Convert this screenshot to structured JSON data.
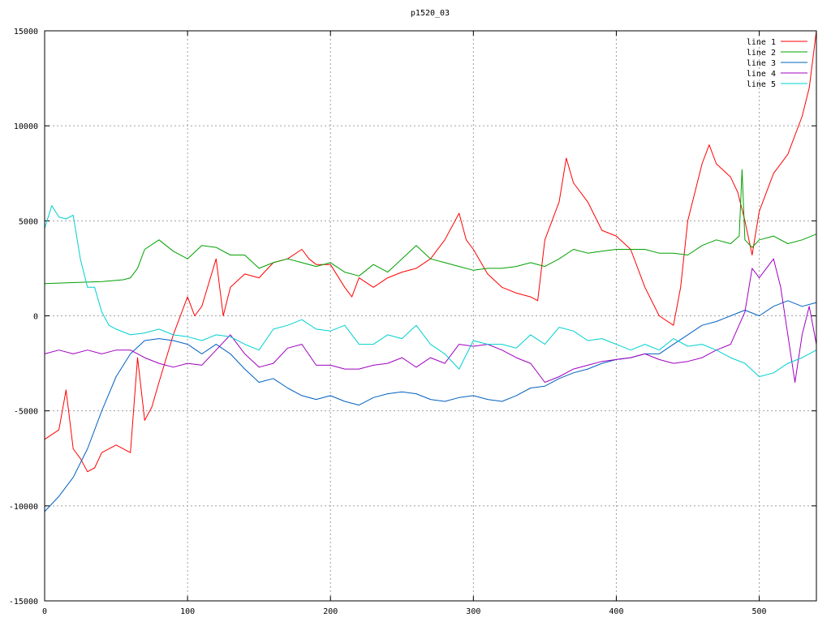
{
  "chart_data": {
    "type": "line",
    "title": "p1520_03",
    "xlabel": "",
    "ylabel": "",
    "xlim": [
      0,
      540
    ],
    "ylim": [
      -15000,
      15000
    ],
    "x_ticks": [
      0,
      100,
      200,
      300,
      400,
      500
    ],
    "y_ticks": [
      -15000,
      -10000,
      -5000,
      0,
      5000,
      10000,
      15000
    ],
    "x_tick_labels": [
      "0",
      "100",
      "200",
      "300",
      "400",
      "500"
    ],
    "y_tick_labels": [
      "-15000",
      "-10000",
      "-5000",
      "0",
      "5000",
      "10000",
      "15000"
    ],
    "grid": true,
    "legend_position": "top-right",
    "series": [
      {
        "name": "line 1",
        "color": "#ff0000",
        "x": [
          0,
          10,
          15,
          20,
          25,
          30,
          35,
          40,
          50,
          60,
          65,
          70,
          75,
          80,
          90,
          100,
          105,
          110,
          120,
          125,
          130,
          140,
          150,
          160,
          170,
          180,
          185,
          190,
          200,
          210,
          215,
          220,
          230,
          240,
          250,
          260,
          270,
          280,
          290,
          295,
          300,
          310,
          320,
          330,
          340,
          345,
          350,
          360,
          365,
          370,
          380,
          390,
          400,
          410,
          420,
          430,
          440,
          445,
          450,
          460,
          465,
          470,
          480,
          485,
          490,
          495,
          500,
          510,
          520,
          530,
          535,
          540
        ],
        "y": [
          -6500,
          -6000,
          -3900,
          -7000,
          -7500,
          -8200,
          -8000,
          -7200,
          -6800,
          -7200,
          -2200,
          -5500,
          -4800,
          -3500,
          -1000,
          1000,
          0,
          500,
          3000,
          0,
          1500,
          2200,
          2000,
          2800,
          3000,
          3500,
          3000,
          2700,
          2700,
          1500,
          1000,
          2000,
          1500,
          2000,
          2300,
          2500,
          3000,
          4000,
          5400,
          4000,
          3500,
          2200,
          1500,
          1200,
          1000,
          800,
          4000,
          6000,
          8300,
          7000,
          6000,
          4500,
          4200,
          3500,
          1500,
          0,
          -500,
          1500,
          5000,
          8000,
          9000,
          8000,
          7300,
          6500,
          5000,
          3200,
          5500,
          7500,
          8500,
          10500,
          12000,
          15000
        ]
      },
      {
        "name": "line 2",
        "color": "#00a000",
        "x": [
          0,
          20,
          40,
          55,
          60,
          65,
          70,
          80,
          90,
          100,
          110,
          120,
          130,
          140,
          150,
          160,
          170,
          180,
          190,
          200,
          210,
          220,
          230,
          240,
          250,
          260,
          270,
          280,
          290,
          300,
          310,
          320,
          330,
          340,
          350,
          360,
          370,
          380,
          390,
          400,
          410,
          420,
          430,
          440,
          450,
          460,
          470,
          480,
          486,
          488,
          490,
          495,
          500,
          510,
          520,
          530,
          540
        ],
        "y": [
          1700,
          1750,
          1800,
          1900,
          2000,
          2500,
          3500,
          4000,
          3400,
          3000,
          3700,
          3600,
          3200,
          3200,
          2500,
          2800,
          3000,
          2800,
          2600,
          2800,
          2300,
          2100,
          2700,
          2300,
          3000,
          3700,
          3000,
          2800,
          2600,
          2400,
          2500,
          2500,
          2600,
          2800,
          2600,
          3000,
          3500,
          3300,
          3400,
          3500,
          3500,
          3500,
          3300,
          3300,
          3200,
          3700,
          4000,
          3800,
          4200,
          7700,
          4000,
          3600,
          4000,
          4200,
          3800,
          4000,
          4300
        ]
      },
      {
        "name": "line 3",
        "color": "#0060c0",
        "x": [
          0,
          10,
          20,
          30,
          40,
          50,
          60,
          70,
          80,
          90,
          100,
          110,
          120,
          130,
          140,
          150,
          160,
          170,
          180,
          190,
          200,
          210,
          220,
          230,
          240,
          250,
          260,
          270,
          280,
          290,
          300,
          310,
          320,
          330,
          340,
          350,
          360,
          370,
          380,
          390,
          400,
          410,
          420,
          430,
          440,
          450,
          460,
          470,
          480,
          490,
          500,
          510,
          520,
          530,
          540
        ],
        "y": [
          -10300,
          -9500,
          -8500,
          -7000,
          -5000,
          -3200,
          -2000,
          -1300,
          -1200,
          -1300,
          -1500,
          -2000,
          -1500,
          -2000,
          -2800,
          -3500,
          -3300,
          -3800,
          -4200,
          -4400,
          -4200,
          -4500,
          -4700,
          -4300,
          -4100,
          -4000,
          -4100,
          -4400,
          -4500,
          -4300,
          -4200,
          -4400,
          -4500,
          -4200,
          -3800,
          -3700,
          -3300,
          -3000,
          -2800,
          -2500,
          -2300,
          -2200,
          -2000,
          -2000,
          -1500,
          -1000,
          -500,
          -300,
          0,
          300,
          0,
          500,
          800,
          500,
          700
        ]
      },
      {
        "name": "line 4",
        "color": "#a000c0",
        "x": [
          0,
          10,
          20,
          30,
          40,
          50,
          60,
          70,
          80,
          90,
          100,
          110,
          120,
          130,
          140,
          150,
          160,
          170,
          180,
          190,
          200,
          210,
          220,
          230,
          240,
          250,
          260,
          270,
          280,
          290,
          300,
          310,
          320,
          330,
          340,
          350,
          360,
          370,
          380,
          390,
          400,
          410,
          420,
          430,
          440,
          450,
          460,
          470,
          480,
          490,
          495,
          500,
          505,
          510,
          515,
          520,
          525,
          530,
          535,
          540
        ],
        "y": [
          -2000,
          -1800,
          -2000,
          -1800,
          -2000,
          -1800,
          -1800,
          -2200,
          -2500,
          -2700,
          -2500,
          -2600,
          -1800,
          -1000,
          -2000,
          -2700,
          -2500,
          -1700,
          -1500,
          -2600,
          -2600,
          -2800,
          -2800,
          -2600,
          -2500,
          -2200,
          -2700,
          -2200,
          -2500,
          -1500,
          -1600,
          -1500,
          -1800,
          -2200,
          -2500,
          -3500,
          -3200,
          -2800,
          -2600,
          -2400,
          -2300,
          -2200,
          -2000,
          -2300,
          -2500,
          -2400,
          -2200,
          -1800,
          -1500,
          200,
          2500,
          2000,
          2500,
          3000,
          1500,
          -1000,
          -3500,
          -1000,
          500,
          -1500
        ]
      },
      {
        "name": "line 5",
        "color": "#00d0d0",
        "x": [
          0,
          5,
          10,
          15,
          20,
          25,
          30,
          35,
          40,
          45,
          50,
          60,
          70,
          80,
          90,
          100,
          110,
          120,
          130,
          140,
          150,
          160,
          170,
          180,
          190,
          200,
          210,
          220,
          230,
          240,
          250,
          260,
          270,
          280,
          290,
          300,
          310,
          320,
          330,
          340,
          350,
          360,
          370,
          380,
          390,
          400,
          410,
          420,
          430,
          440,
          450,
          460,
          470,
          480,
          490,
          500,
          510,
          520,
          530,
          540
        ],
        "y": [
          4600,
          5800,
          5200,
          5100,
          5300,
          3000,
          1500,
          1500,
          200,
          -500,
          -700,
          -1000,
          -900,
          -700,
          -1000,
          -1100,
          -1300,
          -1000,
          -1100,
          -1500,
          -1800,
          -700,
          -500,
          -200,
          -700,
          -800,
          -500,
          -1500,
          -1500,
          -1000,
          -1200,
          -500,
          -1500,
          -2000,
          -2800,
          -1300,
          -1500,
          -1500,
          -1700,
          -1000,
          -1500,
          -600,
          -800,
          -1300,
          -1200,
          -1500,
          -1800,
          -1500,
          -1800,
          -1200,
          -1600,
          -1500,
          -1800,
          -2200,
          -2500,
          -3200,
          -3000,
          -2500,
          -2200,
          -1800
        ]
      }
    ]
  }
}
